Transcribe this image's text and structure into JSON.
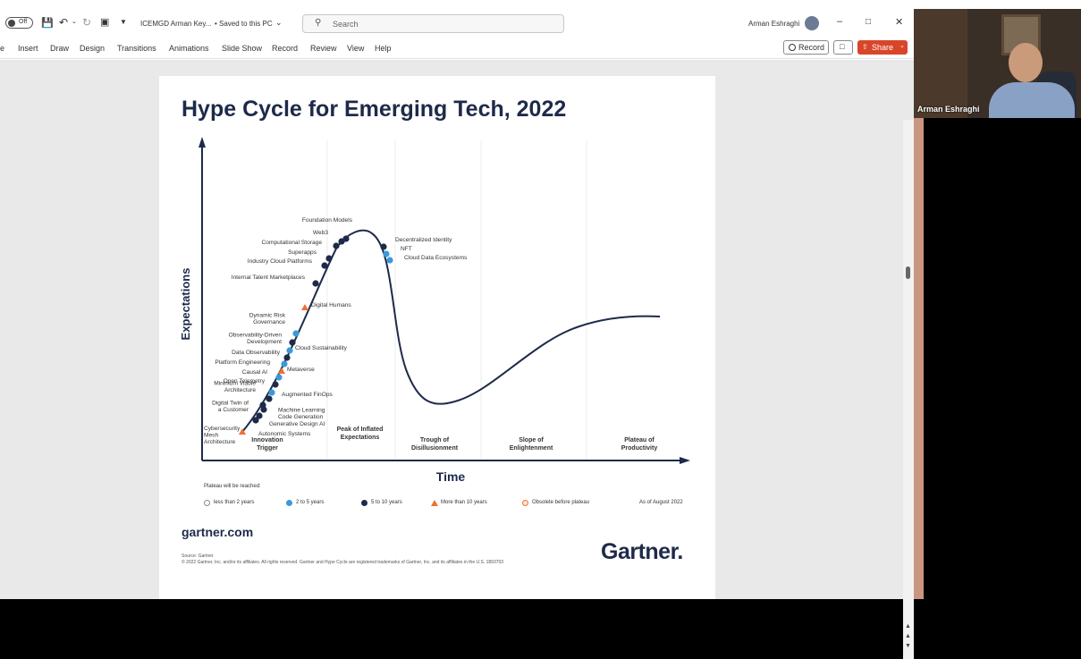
{
  "window": {
    "autosave_label": "Off",
    "doc_title": "ICEMGD Arman Key...",
    "save_status": "• Saved to this PC",
    "search_placeholder": "Search",
    "user_name": "Arman Eshraghi"
  },
  "ribbon": {
    "tabs": [
      "e",
      "Insert",
      "Draw",
      "Design",
      "Transitions",
      "Animations",
      "Slide Show",
      "Record",
      "Review",
      "View",
      "Help"
    ],
    "record_button": "Record",
    "share_button": "Share"
  },
  "video": {
    "participant_name": "Arman Eshraghi"
  },
  "slide": {
    "title": "Hype Cycle for Emerging Tech, 2022",
    "footer_site": "gartner.com",
    "source_line1": "Source: Gartner",
    "source_line2": "© 2022 Gartner, Inc. and/or its affiliates. All rights reserved. Gartner and Hype Cycle are registered trademarks of Gartner, Inc. and its affiliates in the U.S. 1893703",
    "logo": "Gartner."
  },
  "chart_data": {
    "type": "line",
    "title": "Hype Cycle for Emerging Tech, 2022",
    "xlabel": "Time",
    "ylabel": "Expectations",
    "phases": [
      "Innovation Trigger",
      "Peak of Inflated Expectations",
      "Trough of Disillusionment",
      "Slope of Enlightenment",
      "Plateau of Productivity"
    ],
    "legend_title": "Plateau will be reached:",
    "legend": [
      {
        "label": "less than 2 years",
        "marker": "circle-open",
        "color": "#ffffff"
      },
      {
        "label": "2 to 5 years",
        "marker": "circle",
        "color": "#3a9ad9"
      },
      {
        "label": "5 to 10 years",
        "marker": "circle",
        "color": "#1e2a4a"
      },
      {
        "label": "More than 10 years",
        "marker": "triangle",
        "color": "#f07032"
      },
      {
        "label": "Obsolete before plateau",
        "marker": "circle-x",
        "color": "#f07032"
      }
    ],
    "as_of": "As of August 2022",
    "technologies": [
      {
        "name": "Cybersecurity Mesh Architecture",
        "category": "More than 10 years"
      },
      {
        "name": "Autonomic Systems",
        "category": "5 to 10 years"
      },
      {
        "name": "Generative Design AI",
        "category": "5 to 10 years"
      },
      {
        "name": "Machine Learning Code Generation",
        "category": "5 to 10 years"
      },
      {
        "name": "Digital Twin of a Customer",
        "category": "5 to 10 years"
      },
      {
        "name": "Augmented FinOps",
        "category": "5 to 10 years"
      },
      {
        "name": "Minimum Viable Architecture",
        "category": "2 to 5 years"
      },
      {
        "name": "Open Telemetry",
        "category": "5 to 10 years"
      },
      {
        "name": "Causal AI",
        "category": "2 to 5 years"
      },
      {
        "name": "Metaverse",
        "category": "More than 10 years"
      },
      {
        "name": "Platform Engineering",
        "category": "2 to 5 years"
      },
      {
        "name": "Data Observability",
        "category": "5 to 10 years"
      },
      {
        "name": "Cloud Sustainability",
        "category": "2 to 5 years"
      },
      {
        "name": "Observability-Driven Development",
        "category": "5 to 10 years"
      },
      {
        "name": "Dynamic Risk Governance",
        "category": "2 to 5 years"
      },
      {
        "name": "Digital Humans",
        "category": "More than 10 years"
      },
      {
        "name": "Internal Talent Marketplaces",
        "category": "5 to 10 years"
      },
      {
        "name": "Industry Cloud Platforms",
        "category": "5 to 10 years"
      },
      {
        "name": "Superapps",
        "category": "5 to 10 years"
      },
      {
        "name": "Computational Storage",
        "category": "5 to 10 years"
      },
      {
        "name": "Web3",
        "category": "5 to 10 years"
      },
      {
        "name": "Foundation Models",
        "category": "5 to 10 years"
      },
      {
        "name": "Decentralized Identity",
        "category": "5 to 10 years"
      },
      {
        "name": "NFT",
        "category": "2 to 5 years"
      },
      {
        "name": "Cloud Data Ecosystems",
        "category": "2 to 5 years"
      }
    ]
  }
}
